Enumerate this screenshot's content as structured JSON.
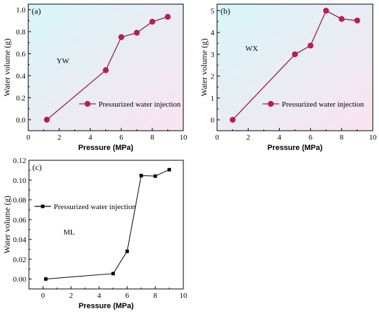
{
  "colors": {
    "series_main": "#a0164f",
    "marker_fill": "#c2185b",
    "series_ml": "#000000",
    "bg_cyan": "#d8f6f8",
    "bg_pink": "#fae3ef"
  },
  "chart_data": [
    {
      "type": "line",
      "panel_label": "(a)",
      "sample_label": "YW",
      "xlabel": "Pressure (MPa)",
      "ylabel": "Water volume (g)",
      "xlim": [
        0,
        10
      ],
      "ylim": [
        -0.1,
        1.05
      ],
      "x_ticks": [
        0,
        2,
        4,
        6,
        8,
        10
      ],
      "x_tick_labels": [
        "0",
        "2",
        "4",
        "6",
        "8",
        "10"
      ],
      "y_ticks": [
        0,
        0.2,
        0.4,
        0.6,
        0.8,
        1.0
      ],
      "y_tick_labels": [
        "0.0",
        "0.2",
        "0.4",
        "0.6",
        "0.8",
        "1.0"
      ],
      "legend_position": "center-right",
      "series": [
        {
          "name": "Pressurized water injection",
          "marker": "circle",
          "x": [
            1.2,
            5.0,
            6.0,
            7.0,
            8.0,
            9.0
          ],
          "y": [
            0.0,
            0.45,
            0.75,
            0.79,
            0.89,
            0.935
          ]
        }
      ]
    },
    {
      "type": "line",
      "panel_label": "(b)",
      "sample_label": "WX",
      "xlabel": "Pressure (MPa)",
      "ylabel": "Water volume (g)",
      "xlim": [
        0,
        10
      ],
      "ylim": [
        -0.5,
        5.3
      ],
      "x_ticks": [
        0,
        2,
        4,
        6,
        8,
        10
      ],
      "x_tick_labels": [
        "0",
        "2",
        "4",
        "6",
        "8",
        "10"
      ],
      "y_ticks": [
        0,
        1,
        2,
        3,
        4,
        5
      ],
      "y_tick_labels": [
        "0",
        "1",
        "2",
        "3",
        "4",
        "5"
      ],
      "legend_position": "center-right",
      "series": [
        {
          "name": "Pressurized water injection",
          "marker": "circle",
          "x": [
            1.0,
            5.0,
            6.0,
            7.0,
            8.0,
            9.0
          ],
          "y": [
            0.0,
            3.0,
            3.4,
            5.0,
            4.62,
            4.55
          ]
        }
      ]
    },
    {
      "type": "line",
      "panel_label": "(c)",
      "sample_label": "ML",
      "xlabel": "Pressure (MPa)",
      "ylabel": "Water volume (g)",
      "xlim": [
        -1,
        10
      ],
      "ylim": [
        -0.01,
        0.12
      ],
      "x_ticks": [
        0,
        2,
        4,
        6,
        8,
        10
      ],
      "x_tick_labels": [
        "0",
        "2",
        "4",
        "6",
        "8",
        "10"
      ],
      "y_ticks": [
        0,
        0.02,
        0.04,
        0.06,
        0.08,
        0.1,
        0.12
      ],
      "y_tick_labels": [
        "0.00",
        "0.02",
        "0.04",
        "0.06",
        "0.08",
        "0.10",
        "0.12"
      ],
      "legend_position": "top-left",
      "series": [
        {
          "name": "Pressurized water injection",
          "marker": "square",
          "x": [
            0.2,
            5.0,
            6.0,
            7.0,
            8.0,
            9.0
          ],
          "y": [
            0.0,
            0.0055,
            0.028,
            0.1045,
            0.104,
            0.1105
          ]
        }
      ]
    }
  ]
}
